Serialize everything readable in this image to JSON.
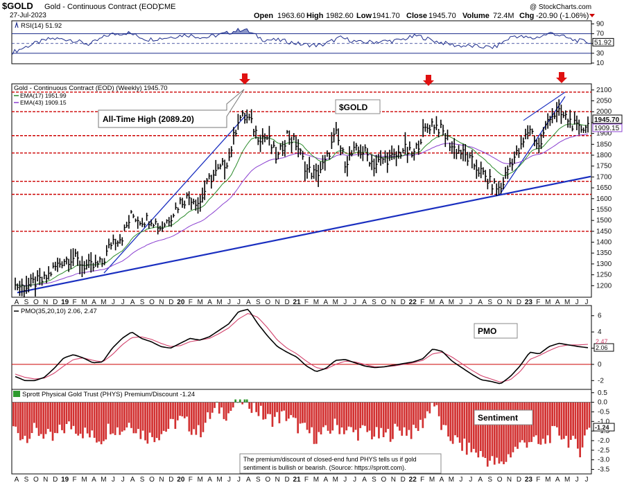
{
  "header": {
    "symbol": "$GOLD",
    "name": "Gold - Continuous Contract (EOD)",
    "exchange": "CME",
    "date": "27-Jul-2023",
    "open_label": "Open",
    "open": "1963.60",
    "high_label": "High",
    "high": "1982.60",
    "low_label": "Low",
    "low": "1941.70",
    "close_label": "Close",
    "close": "1945.70",
    "volume_label": "Volume",
    "volume": "72.4M",
    "chg_label": "Chg",
    "chg": "-20.90 (-1.06%)",
    "credit": "@ StockCharts.com"
  },
  "colors": {
    "price_bar": "#000000",
    "ema17": "#2a8a2a",
    "ema43": "#8a3fd0",
    "trendline": "#1a2fc0",
    "resistance": "#cc0000",
    "rsi": "#1a2a8a",
    "pmo": "#000000",
    "pmo_signal": "#d2416b",
    "sentiment_neg": "#d23030",
    "sentiment_pos": "#2e9a2e",
    "arrow": "#e01010"
  },
  "chart_data": [
    {
      "type": "line",
      "panel": "rsi",
      "title": "RSI(14) 51.92",
      "current": "51.92",
      "ylim": [
        10,
        95
      ],
      "yticks": [
        "90",
        "70",
        "50",
        "30",
        "10"
      ],
      "overbought": 70,
      "oversold": 30,
      "x": [
        "2018-08",
        "2018-10",
        "2018-12",
        "2019-02",
        "2019-04",
        "2019-06",
        "2019-08",
        "2019-10",
        "2019-12",
        "2020-02",
        "2020-04",
        "2020-06",
        "2020-08",
        "2020-10",
        "2020-12",
        "2021-02",
        "2021-04",
        "2021-06",
        "2021-08",
        "2021-10",
        "2021-12",
        "2022-02",
        "2022-04",
        "2022-06",
        "2022-08",
        "2022-10",
        "2022-12",
        "2023-02",
        "2023-04",
        "2023-06",
        "2023-07"
      ],
      "values": [
        32,
        48,
        60,
        58,
        48,
        68,
        72,
        58,
        62,
        68,
        62,
        70,
        80,
        58,
        56,
        48,
        46,
        62,
        52,
        54,
        56,
        66,
        54,
        46,
        44,
        42,
        66,
        60,
        72,
        58,
        52
      ]
    },
    {
      "type": "bar",
      "panel": "price",
      "subtitle": "Gold - Continuous Contract (EOD) (Weekly) 1945.70",
      "label": "$GOLD",
      "annotation": "All-Time High (2089.20)",
      "ylim": [
        1150,
        2125
      ],
      "yticks": [
        "2100",
        "2050",
        "2000",
        "1950",
        "1900",
        "1850",
        "1800",
        "1750",
        "1700",
        "1650",
        "1600",
        "1550",
        "1500",
        "1450",
        "1400",
        "1350",
        "1300",
        "1250",
        "1200"
      ],
      "xticks": [
        "A",
        "S",
        "O",
        "N",
        "D",
        "19",
        "F",
        "M",
        "A",
        "M",
        "J",
        "J",
        "A",
        "S",
        "O",
        "N",
        "D",
        "20",
        "F",
        "M",
        "A",
        "M",
        "J",
        "J",
        "A",
        "S",
        "O",
        "N",
        "D",
        "21",
        "F",
        "M",
        "A",
        "M",
        "J",
        "J",
        "A",
        "S",
        "O",
        "N",
        "D",
        "22",
        "F",
        "M",
        "A",
        "M",
        "J",
        "J",
        "A",
        "S",
        "O",
        "N",
        "D",
        "23",
        "F",
        "M",
        "A",
        "M",
        "J",
        "J"
      ],
      "x": [
        "2018-08",
        "2018-09",
        "2018-10",
        "2018-11",
        "2018-12",
        "2019-01",
        "2019-02",
        "2019-03",
        "2019-04",
        "2019-05",
        "2019-06",
        "2019-07",
        "2019-08",
        "2019-09",
        "2019-10",
        "2019-11",
        "2019-12",
        "2020-01",
        "2020-02",
        "2020-03",
        "2020-04",
        "2020-05",
        "2020-06",
        "2020-07",
        "2020-08",
        "2020-09",
        "2020-10",
        "2020-11",
        "2020-12",
        "2021-01",
        "2021-02",
        "2021-03",
        "2021-04",
        "2021-05",
        "2021-06",
        "2021-07",
        "2021-08",
        "2021-09",
        "2021-10",
        "2021-11",
        "2021-12",
        "2022-01",
        "2022-02",
        "2022-03",
        "2022-04",
        "2022-05",
        "2022-06",
        "2022-07",
        "2022-08",
        "2022-09",
        "2022-10",
        "2022-11",
        "2022-12",
        "2023-01",
        "2023-02",
        "2023-03",
        "2023-04",
        "2023-05",
        "2023-06",
        "2023-07"
      ],
      "values": [
        1200,
        1195,
        1215,
        1225,
        1280,
        1320,
        1330,
        1295,
        1285,
        1305,
        1410,
        1425,
        1525,
        1500,
        1510,
        1465,
        1520,
        1585,
        1610,
        1580,
        1690,
        1730,
        1785,
        1975,
        1970,
        1890,
        1880,
        1780,
        1895,
        1850,
        1735,
        1710,
        1770,
        1900,
        1770,
        1820,
        1815,
        1755,
        1785,
        1785,
        1830,
        1795,
        1905,
        1950,
        1910,
        1840,
        1810,
        1770,
        1720,
        1670,
        1640,
        1770,
        1820,
        1930,
        1830,
        1985,
        1990,
        1965,
        1915,
        1945.7
      ],
      "ema17_label": "EMA(17) 1951.99",
      "ema43_label": "EMA(43) 1909.15",
      "all_time_high": 2089.2,
      "resistance_levels": [
        2090,
        2000,
        1890,
        1810,
        1680,
        1620,
        1450
      ],
      "price_tag": "1945.70",
      "ema43_tag": "1909.15"
    },
    {
      "type": "line",
      "panel": "pmo",
      "title": "PMO(35,20,10) 2.06, 2.47",
      "pmo_value": "2.06",
      "signal_value": "2.47",
      "label": "PMO",
      "ylim": [
        -3,
        7
      ],
      "yticks": [
        "6",
        "4",
        "2",
        "0",
        "-2"
      ],
      "x": [
        "2018-08",
        "2018-09",
        "2018-10",
        "2018-11",
        "2018-12",
        "2019-01",
        "2019-02",
        "2019-03",
        "2019-04",
        "2019-05",
        "2019-06",
        "2019-07",
        "2019-08",
        "2019-09",
        "2019-10",
        "2019-11",
        "2019-12",
        "2020-01",
        "2020-02",
        "2020-03",
        "2020-04",
        "2020-05",
        "2020-06",
        "2020-07",
        "2020-08",
        "2020-09",
        "2020-10",
        "2020-11",
        "2020-12",
        "2021-01",
        "2021-02",
        "2021-03",
        "2021-04",
        "2021-05",
        "2021-06",
        "2021-07",
        "2021-08",
        "2021-09",
        "2021-10",
        "2021-11",
        "2021-12",
        "2022-01",
        "2022-02",
        "2022-03",
        "2022-04",
        "2022-05",
        "2022-06",
        "2022-07",
        "2022-08",
        "2022-09",
        "2022-10",
        "2022-11",
        "2022-12",
        "2023-01",
        "2023-02",
        "2023-03",
        "2023-04",
        "2023-05",
        "2023-06",
        "2023-07"
      ],
      "series": [
        {
          "name": "PMO",
          "values": [
            -1.5,
            -2.0,
            -2.0,
            -1.6,
            -0.5,
            0.8,
            1.2,
            0.8,
            0.2,
            0.3,
            2.0,
            3.2,
            4.0,
            3.2,
            2.8,
            2.2,
            2.0,
            2.6,
            3.2,
            3.0,
            3.4,
            4.2,
            5.0,
            6.5,
            6.8,
            5.0,
            3.5,
            2.2,
            1.5,
            0.9,
            -0.2,
            -0.9,
            -0.5,
            0.5,
            0.6,
            0.2,
            -0.2,
            -0.4,
            -0.3,
            -0.1,
            0.1,
            0.3,
            0.7,
            1.9,
            1.6,
            0.4,
            -0.4,
            -1.2,
            -1.9,
            -2.1,
            -2.4,
            -1.5,
            -0.2,
            1.5,
            1.3,
            2.2,
            2.6,
            2.4,
            2.2,
            2.06
          ]
        },
        {
          "name": "Signal",
          "values": [
            -1.2,
            -1.6,
            -1.8,
            -1.7,
            -1.1,
            -0.2,
            0.6,
            0.8,
            0.5,
            0.3,
            1.2,
            2.4,
            3.3,
            3.4,
            3.1,
            2.6,
            2.2,
            2.3,
            2.8,
            3.0,
            3.2,
            3.8,
            4.5,
            5.6,
            6.3,
            5.8,
            4.5,
            3.0,
            2.0,
            1.3,
            0.4,
            -0.4,
            -0.6,
            0.0,
            0.4,
            0.3,
            0.0,
            -0.3,
            -0.3,
            -0.2,
            0.0,
            0.2,
            0.5,
            1.3,
            1.5,
            0.9,
            0.1,
            -0.7,
            -1.4,
            -1.8,
            -2.2,
            -1.9,
            -0.9,
            0.6,
            1.1,
            1.7,
            2.2,
            2.4,
            2.4,
            2.47
          ]
        }
      ]
    },
    {
      "type": "bar",
      "panel": "sentiment",
      "title": "Sprott Physical Gold Trust (PHYS) Premium/Discount -1.24",
      "label": "Sentiment",
      "current_tag": "-1.24",
      "ylim": [
        -3.7,
        0.6
      ],
      "yticks": [
        "0.5",
        "0.0",
        "-0.5",
        "-1.0",
        "-1.5",
        "-2.0",
        "-2.5",
        "-3.0",
        "-3.5"
      ],
      "xticks": [
        "A",
        "S",
        "O",
        "N",
        "D",
        "19",
        "F",
        "M",
        "A",
        "M",
        "J",
        "J",
        "A",
        "S",
        "O",
        "N",
        "D",
        "20",
        "F",
        "M",
        "A",
        "M",
        "J",
        "J",
        "A",
        "S",
        "O",
        "N",
        "D",
        "21",
        "F",
        "M",
        "A",
        "M",
        "J",
        "J",
        "A",
        "S",
        "O",
        "N",
        "D",
        "22",
        "F",
        "M",
        "A",
        "M",
        "J",
        "J",
        "A",
        "S",
        "O",
        "N",
        "D",
        "23",
        "F",
        "M",
        "A",
        "M",
        "J",
        "J"
      ],
      "x": [
        "2018-08",
        "2018-09",
        "2018-10",
        "2018-11",
        "2018-12",
        "2019-01",
        "2019-02",
        "2019-03",
        "2019-04",
        "2019-05",
        "2019-06",
        "2019-07",
        "2019-08",
        "2019-09",
        "2019-10",
        "2019-11",
        "2019-12",
        "2020-01",
        "2020-02",
        "2020-03",
        "2020-04",
        "2020-05",
        "2020-06",
        "2020-07",
        "2020-08",
        "2020-09",
        "2020-10",
        "2020-11",
        "2020-12",
        "2021-01",
        "2021-02",
        "2021-03",
        "2021-04",
        "2021-05",
        "2021-06",
        "2021-07",
        "2021-08",
        "2021-09",
        "2021-10",
        "2021-11",
        "2021-12",
        "2022-01",
        "2022-02",
        "2022-03",
        "2022-04",
        "2022-05",
        "2022-06",
        "2022-07",
        "2022-08",
        "2022-09",
        "2022-10",
        "2022-11",
        "2022-12",
        "2023-01",
        "2023-02",
        "2023-03",
        "2023-04",
        "2023-05",
        "2023-06",
        "2023-07"
      ],
      "values": [
        -1.3,
        -1.8,
        -1.5,
        -1.6,
        -2.0,
        -1.4,
        -1.2,
        -1.5,
        -1.8,
        -1.9,
        -1.2,
        -1.5,
        -1.0,
        -1.6,
        -1.8,
        -1.6,
        -1.3,
        -0.9,
        -1.2,
        -1.6,
        -0.8,
        -0.3,
        -0.6,
        0.1,
        0.1,
        -0.4,
        -0.9,
        -0.8,
        -0.7,
        -1.2,
        -1.5,
        -1.8,
        -1.6,
        -1.2,
        -1.4,
        -1.6,
        -1.5,
        -1.7,
        -1.8,
        -1.5,
        -1.4,
        -1.6,
        -1.0,
        0.1,
        -1.5,
        -1.9,
        -2.3,
        -2.5,
        -2.8,
        -3.1,
        -3.3,
        -2.6,
        -2.2,
        -1.9,
        -2.3,
        -1.7,
        -1.6,
        -2.0,
        -2.5,
        -1.24
      ]
    }
  ],
  "note": {
    "line1": "The premium/discount of closed-end fund PHYS tells us if gold",
    "line2": "sentiment is bullish or bearish. (Source: https://sprott.com)."
  }
}
